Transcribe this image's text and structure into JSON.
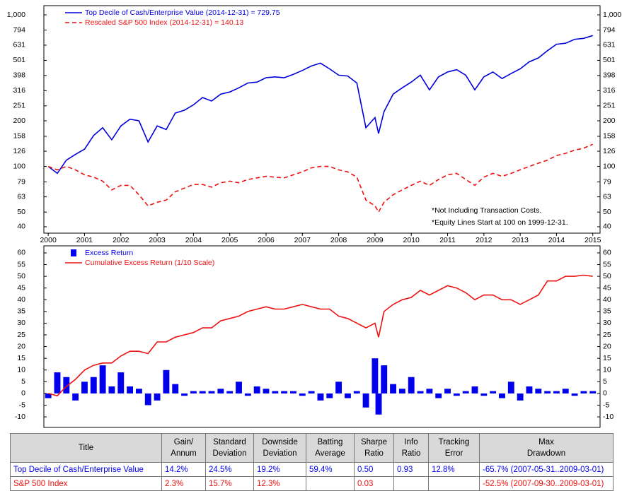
{
  "chart_data": [
    {
      "type": "line",
      "log_y": true,
      "x": [
        2000,
        2000.25,
        2000.5,
        2000.75,
        2001,
        2001.25,
        2001.5,
        2001.75,
        2002,
        2002.25,
        2002.5,
        2002.75,
        2003,
        2003.25,
        2003.5,
        2003.75,
        2004,
        2004.25,
        2004.5,
        2004.75,
        2005,
        2005.25,
        2005.5,
        2005.75,
        2006,
        2006.25,
        2006.5,
        2006.75,
        2007,
        2007.25,
        2007.5,
        2007.75,
        2008,
        2008.25,
        2008.5,
        2008.75,
        2009,
        2009.1,
        2009.25,
        2009.5,
        2009.75,
        2010,
        2010.25,
        2010.5,
        2010.75,
        2011,
        2011.25,
        2011.5,
        2011.75,
        2012,
        2012.25,
        2012.5,
        2012.75,
        2013,
        2013.25,
        2013.5,
        2013.75,
        2014,
        2014.25,
        2014.5,
        2014.75,
        2015
      ],
      "series": [
        {
          "name": "Top Decile of Cash/Enterprise Value (2014-12-31) = 729.75",
          "color": "#0000dd",
          "dashed": false,
          "values": [
            100,
            90,
            110,
            120,
            130,
            160,
            180,
            150,
            185,
            205,
            200,
            145,
            185,
            175,
            225,
            235,
            255,
            285,
            270,
            300,
            310,
            330,
            355,
            360,
            385,
            390,
            385,
            405,
            430,
            460,
            480,
            440,
            400,
            395,
            355,
            180,
            210,
            165,
            230,
            300,
            330,
            360,
            400,
            320,
            390,
            420,
            435,
            400,
            320,
            390,
            420,
            380,
            410,
            440,
            490,
            520,
            580,
            640,
            650,
            690,
            700,
            730
          ]
        },
        {
          "name": "Rescaled S&P 500 Index (2014-12-31) = 140.13",
          "color": "#ee1111",
          "dashed": true,
          "values": [
            100,
            95,
            100,
            95,
            88,
            85,
            80,
            70,
            75,
            75,
            65,
            55,
            58,
            60,
            68,
            72,
            76,
            76,
            73,
            78,
            80,
            78,
            82,
            84,
            86,
            85,
            84,
            88,
            92,
            98,
            100,
            100,
            95,
            92,
            85,
            60,
            55,
            50,
            58,
            65,
            70,
            75,
            80,
            75,
            82,
            88,
            90,
            82,
            75,
            85,
            90,
            86,
            90,
            95,
            100,
            105,
            110,
            118,
            122,
            128,
            132,
            140
          ]
        }
      ],
      "xlim": [
        1999.88,
        2015.2
      ],
      "xticks": [
        2000,
        2001,
        2002,
        2003,
        2004,
        2005,
        2006,
        2007,
        2008,
        2009,
        2010,
        2011,
        2012,
        2013,
        2014,
        2015
      ],
      "ylim": [
        36.3,
        1150
      ],
      "yticks": [
        40,
        50,
        63,
        79,
        100,
        126,
        158,
        200,
        251,
        316,
        398,
        501,
        631,
        794,
        {
          "value": 1000,
          "label": "1,000"
        }
      ],
      "annotations": [
        "*Not Including Transaction Costs.",
        "*Equity Lines Start at 100 on 1999-12-31."
      ]
    },
    {
      "type": "combo",
      "log_y": false,
      "x": [
        2000,
        2000.25,
        2000.5,
        2000.75,
        2001,
        2001.25,
        2001.5,
        2001.75,
        2002,
        2002.25,
        2002.5,
        2002.75,
        2003,
        2003.25,
        2003.5,
        2003.75,
        2004,
        2004.25,
        2004.5,
        2004.75,
        2005,
        2005.25,
        2005.5,
        2005.75,
        2006,
        2006.25,
        2006.5,
        2006.75,
        2007,
        2007.25,
        2007.5,
        2007.75,
        2008,
        2008.25,
        2008.5,
        2008.75,
        2009,
        2009.1,
        2009.25,
        2009.5,
        2009.75,
        2010,
        2010.25,
        2010.5,
        2010.75,
        2011,
        2011.25,
        2011.5,
        2011.75,
        2012,
        2012.25,
        2012.5,
        2012.75,
        2013,
        2013.25,
        2013.5,
        2013.75,
        2014,
        2014.25,
        2014.5,
        2014.75,
        2015
      ],
      "series": [
        {
          "name": "Excess Return",
          "type": "bar",
          "color": "#0000ee",
          "values": [
            -2,
            9,
            7,
            -3,
            5,
            7,
            12,
            3,
            9,
            3,
            2,
            -5,
            -3,
            10,
            4,
            -1,
            1,
            1,
            1,
            2,
            1,
            5,
            -1,
            3,
            2,
            1,
            1,
            1,
            -1,
            1,
            -3,
            -2,
            5,
            -2,
            1,
            -6,
            15,
            -9,
            12,
            4,
            2,
            7,
            1,
            2,
            -2,
            2,
            -1,
            1,
            3,
            -1,
            1,
            -2,
            5,
            -3,
            3,
            2,
            1,
            1,
            2,
            -1,
            1,
            1
          ]
        },
        {
          "name": "Cumulative Excess Return (1/10 Scale)",
          "type": "line",
          "color": "#ee1111",
          "values": [
            0,
            -1,
            3,
            6,
            10,
            12,
            13,
            13,
            16,
            18,
            18,
            17,
            22,
            22,
            24,
            25,
            26,
            28,
            28,
            31,
            32,
            33,
            35,
            36,
            37,
            36,
            36,
            37,
            38,
            37,
            36,
            36,
            33,
            32,
            30,
            28,
            30,
            24,
            35,
            38,
            40,
            41,
            44,
            42,
            44,
            46,
            45,
            43,
            40,
            42,
            42,
            40,
            40,
            38,
            40,
            42,
            48,
            48,
            50,
            50,
            50.5,
            50
          ]
        }
      ],
      "xlim": [
        1999.88,
        2015.2
      ],
      "ylim": [
        -14.5,
        63
      ],
      "yticks": [
        -10,
        -5,
        0,
        5,
        10,
        15,
        20,
        25,
        30,
        35,
        40,
        45,
        50,
        55,
        60
      ]
    }
  ],
  "table": {
    "header": [
      "Title",
      "Gain/\nAnnum",
      "Standard\nDeviation",
      "Downside\nDeviation",
      "Batting\nAverage",
      "Sharpe\nRatio",
      "Info\nRatio",
      "Tracking\nError",
      "Max\nDrawdown"
    ],
    "rows": [
      [
        "Top Decile of Cash/Enterprise Value",
        "14.2%",
        "24.5%",
        "19.2%",
        "59.4%",
        "0.50",
        "0.93",
        "12.8%",
        "-65.7% (2007-05-31..2009-03-01)"
      ],
      [
        "S&P 500 Index",
        "2.3%",
        "15.7%",
        "12.3%",
        null,
        "0.03",
        null,
        null,
        "-52.5% (2007-09-30..2009-03-01)"
      ]
    ]
  }
}
